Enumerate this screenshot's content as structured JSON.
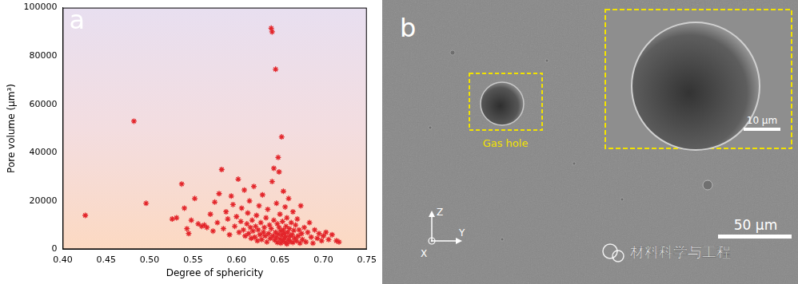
{
  "chart_data": {
    "type": "scatter",
    "annotations": [
      "a"
    ],
    "x_label": "Degree of sphericity",
    "y_label": "Pore volume (μm³)",
    "x": [
      0.426,
      0.482,
      0.496,
      0.526,
      0.531,
      0.537,
      0.54,
      0.543,
      0.545,
      0.548,
      0.552,
      0.556,
      0.56,
      0.563,
      0.566,
      0.57,
      0.573,
      0.575,
      0.578,
      0.58,
      0.583,
      0.585,
      0.588,
      0.59,
      0.592,
      0.594,
      0.596,
      0.598,
      0.6,
      0.602,
      0.603,
      0.605,
      0.606,
      0.608,
      0.609,
      0.61,
      0.612,
      0.613,
      0.614,
      0.615,
      0.616,
      0.617,
      0.618,
      0.619,
      0.62,
      0.621,
      0.622,
      0.623,
      0.624,
      0.625,
      0.626,
      0.627,
      0.628,
      0.629,
      0.63,
      0.631,
      0.632,
      0.633,
      0.634,
      0.635,
      0.636,
      0.637,
      0.638,
      0.639,
      0.64,
      0.641,
      0.64,
      0.641,
      0.642,
      0.643,
      0.643,
      0.644,
      0.645,
      0.645,
      0.646,
      0.646,
      0.647,
      0.647,
      0.648,
      0.648,
      0.649,
      0.649,
      0.65,
      0.65,
      0.651,
      0.651,
      0.652,
      0.652,
      0.653,
      0.653,
      0.654,
      0.654,
      0.655,
      0.655,
      0.656,
      0.656,
      0.657,
      0.657,
      0.658,
      0.658,
      0.659,
      0.66,
      0.66,
      0.661,
      0.662,
      0.662,
      0.663,
      0.664,
      0.665,
      0.665,
      0.666,
      0.667,
      0.668,
      0.669,
      0.67,
      0.671,
      0.672,
      0.673,
      0.674,
      0.675,
      0.676,
      0.678,
      0.68,
      0.682,
      0.684,
      0.686,
      0.688,
      0.69,
      0.693,
      0.695,
      0.698,
      0.7,
      0.703,
      0.706,
      0.71,
      0.715,
      0.718
    ],
    "values": [
      14000,
      53000,
      19000,
      12500,
      13000,
      27000,
      17000,
      8500,
      6500,
      12000,
      21000,
      10500,
      9500,
      10000,
      9000,
      14500,
      7500,
      19500,
      11000,
      23000,
      33000,
      8500,
      15500,
      12500,
      6000,
      22000,
      18500,
      9500,
      13500,
      29000,
      7000,
      11500,
      17000,
      8000,
      24500,
      5500,
      10500,
      15000,
      6500,
      20000,
      9000,
      4500,
      12000,
      7500,
      26000,
      5000,
      9500,
      14000,
      3500,
      8000,
      18000,
      6000,
      11000,
      4000,
      22500,
      7000,
      9000,
      5500,
      13000,
      3000,
      16500,
      6500,
      10000,
      4500,
      91500,
      90000,
      8500,
      28000,
      5500,
      33500,
      12000,
      3800,
      74500,
      7000,
      19000,
      4800,
      10500,
      2800,
      38000,
      6200,
      32000,
      9000,
      4200,
      14500,
      7500,
      2500,
      46500,
      5800,
      11500,
      3500,
      8000,
      24000,
      4800,
      6500,
      17500,
      3000,
      9500,
      5200,
      13000,
      2200,
      7000,
      4000,
      21000,
      8500,
      5500,
      3200,
      11000,
      6000,
      15500,
      2800,
      7800,
      4500,
      10000,
      3500,
      12500,
      5500,
      8000,
      2500,
      18000,
      6500,
      4000,
      9000,
      3000,
      7000,
      11000,
      5000,
      2500,
      8000,
      4500,
      6500,
      3500,
      5500,
      7000,
      4000,
      6000,
      3500,
      3000
    ],
    "color": "#e3262b",
    "marker": "star",
    "xlim": [
      0.4,
      0.75
    ],
    "xticks": [
      {
        "value": 0.4,
        "label": "0.40"
      },
      {
        "value": 0.45,
        "label": "0.45"
      },
      {
        "value": 0.5,
        "label": "0.50"
      },
      {
        "value": 0.55,
        "label": "0.55"
      },
      {
        "value": 0.6,
        "label": "0.60"
      },
      {
        "value": 0.65,
        "label": "0.65"
      },
      {
        "value": 0.7,
        "label": "0.70"
      },
      {
        "value": 0.75,
        "label": "0.75"
      }
    ],
    "ylim": [
      0,
      100000
    ],
    "yticks": [
      0,
      20000,
      40000,
      60000,
      80000,
      100000
    ],
    "grid": false
  },
  "image_panel": {
    "label": "b",
    "annotations": [
      "Gas hole"
    ],
    "inset_scale_bar": "10 μm",
    "scale_bar": "50 μm",
    "axes": [
      "Z",
      "Y",
      "X"
    ]
  },
  "watermark": "材料科学与工程"
}
